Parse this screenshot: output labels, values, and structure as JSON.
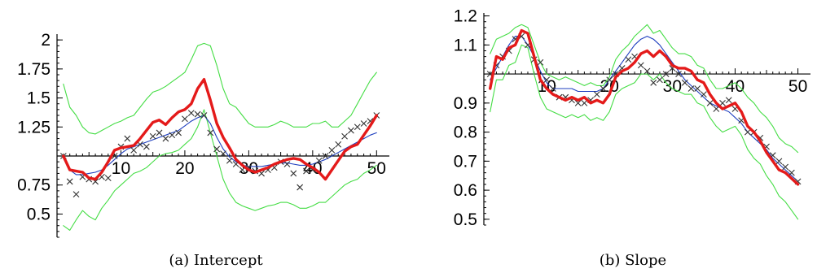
{
  "chart_data": [
    {
      "type": "line",
      "caption": "(a) Intercept",
      "x_axis": {
        "xlim": [
          0,
          52
        ],
        "ticks": [
          10,
          20,
          30,
          40,
          50
        ],
        "tick_labels": [
          "10",
          "20",
          "30",
          "40",
          "50"
        ],
        "crosses_y_at": 1
      },
      "y_axis": {
        "ylim": [
          0.3,
          2.05
        ],
        "ticks": [
          0.5,
          0.75,
          1.25,
          1.5,
          1.75,
          2
        ],
        "tick_labels": [
          "0.5",
          "0.75",
          "1.25",
          "1.5",
          "1.75",
          "2"
        ]
      },
      "grid": false,
      "legend": "none",
      "series": [
        {
          "style": "crosses",
          "color": "#333333",
          "x": [
            1,
            2,
            3,
            4,
            5,
            6,
            7,
            8,
            9,
            10,
            11,
            12,
            13,
            14,
            15,
            16,
            17,
            18,
            19,
            20,
            21,
            22,
            23,
            24,
            25,
            26,
            27,
            28,
            29,
            30,
            31,
            32,
            33,
            34,
            35,
            36,
            37,
            38,
            39,
            40,
            41,
            42,
            43,
            44,
            45,
            46,
            47,
            48,
            49,
            50
          ],
          "y": [
            1.0,
            0.78,
            0.67,
            0.82,
            0.8,
            0.78,
            0.82,
            0.81,
            1.0,
            1.08,
            1.15,
            1.05,
            1.1,
            1.08,
            1.17,
            1.2,
            1.15,
            1.18,
            1.2,
            1.32,
            1.37,
            1.36,
            1.35,
            1.2,
            1.06,
            1.02,
            0.96,
            0.93,
            0.88,
            0.9,
            0.87,
            0.85,
            0.88,
            0.9,
            0.95,
            0.93,
            0.85,
            0.73,
            0.87,
            0.88,
            0.96,
            1.0,
            1.05,
            1.1,
            1.17,
            1.22,
            1.25,
            1.28,
            1.3,
            1.35
          ]
        },
        {
          "style": "thin",
          "color": "#1f3fbf",
          "x": [
            1,
            2,
            3,
            4,
            5,
            6,
            7,
            8,
            9,
            10,
            11,
            12,
            13,
            14,
            15,
            16,
            17,
            18,
            19,
            20,
            21,
            22,
            23,
            24,
            25,
            26,
            27,
            28,
            29,
            30,
            31,
            32,
            33,
            34,
            35,
            36,
            37,
            38,
            39,
            40,
            41,
            42,
            43,
            44,
            45,
            46,
            47,
            48,
            49,
            50
          ],
          "y": [
            0.98,
            0.88,
            0.84,
            0.84,
            0.85,
            0.86,
            0.88,
            0.92,
            0.97,
            1.02,
            1.06,
            1.08,
            1.1,
            1.12,
            1.14,
            1.16,
            1.18,
            1.2,
            1.22,
            1.26,
            1.3,
            1.33,
            1.35,
            1.28,
            1.16,
            1.06,
            0.99,
            0.95,
            0.92,
            0.91,
            0.91,
            0.91,
            0.92,
            0.93,
            0.94,
            0.94,
            0.93,
            0.92,
            0.92,
            0.93,
            0.95,
            0.97,
            1.0,
            1.03,
            1.06,
            1.09,
            1.12,
            1.15,
            1.18,
            1.2
          ]
        },
        {
          "style": "thick",
          "color": "#e41a1a",
          "x": [
            1,
            2,
            3,
            4,
            5,
            6,
            7,
            8,
            9,
            10,
            11,
            12,
            13,
            14,
            15,
            16,
            17,
            18,
            19,
            20,
            21,
            22,
            23,
            24,
            25,
            26,
            27,
            28,
            29,
            30,
            31,
            32,
            33,
            34,
            35,
            36,
            37,
            38,
            39,
            40,
            41,
            42,
            43,
            44,
            45,
            46,
            47,
            48,
            49,
            50
          ],
          "y": [
            1.0,
            0.88,
            0.87,
            0.86,
            0.81,
            0.8,
            0.86,
            0.95,
            1.05,
            1.07,
            1.08,
            1.09,
            1.15,
            1.22,
            1.29,
            1.31,
            1.27,
            1.33,
            1.38,
            1.4,
            1.45,
            1.58,
            1.66,
            1.48,
            1.28,
            1.16,
            1.07,
            0.97,
            0.92,
            0.88,
            0.86,
            0.88,
            0.9,
            0.93,
            0.95,
            0.97,
            0.98,
            0.97,
            0.93,
            0.9,
            0.86,
            0.8,
            0.88,
            0.96,
            1.04,
            1.08,
            1.1,
            1.18,
            1.26,
            1.35
          ]
        },
        {
          "style": "band-upper",
          "color": "#44dd44",
          "x": [
            1,
            2,
            3,
            4,
            5,
            6,
            7,
            8,
            9,
            10,
            11,
            12,
            13,
            14,
            15,
            16,
            17,
            18,
            19,
            20,
            21,
            22,
            23,
            24,
            25,
            26,
            27,
            28,
            29,
            30,
            31,
            32,
            33,
            34,
            35,
            36,
            37,
            38,
            39,
            40,
            41,
            42,
            43,
            44,
            45,
            46,
            47,
            48,
            49,
            50
          ],
          "y": [
            1.62,
            1.42,
            1.35,
            1.25,
            1.2,
            1.19,
            1.22,
            1.25,
            1.28,
            1.3,
            1.33,
            1.35,
            1.42,
            1.49,
            1.55,
            1.57,
            1.6,
            1.64,
            1.68,
            1.72,
            1.83,
            1.95,
            1.97,
            1.95,
            1.78,
            1.58,
            1.45,
            1.42,
            1.35,
            1.28,
            1.25,
            1.25,
            1.25,
            1.27,
            1.3,
            1.28,
            1.25,
            1.25,
            1.25,
            1.28,
            1.28,
            1.3,
            1.25,
            1.25,
            1.3,
            1.35,
            1.45,
            1.55,
            1.65,
            1.72
          ]
        },
        {
          "style": "band-lower",
          "color": "#44dd44",
          "x": [
            1,
            2,
            3,
            4,
            5,
            6,
            7,
            8,
            9,
            10,
            11,
            12,
            13,
            14,
            15,
            16,
            17,
            18,
            19,
            20,
            21,
            22,
            23,
            24,
            25,
            26,
            27,
            28,
            29,
            30,
            31,
            32,
            33,
            34,
            35,
            36,
            37,
            38,
            39,
            40,
            41,
            42,
            43,
            44,
            45,
            46,
            47,
            48,
            49,
            50
          ],
          "y": [
            0.4,
            0.36,
            0.45,
            0.53,
            0.48,
            0.45,
            0.55,
            0.62,
            0.7,
            0.75,
            0.8,
            0.85,
            0.87,
            0.9,
            0.95,
            1.0,
            1.02,
            1.03,
            1.05,
            1.1,
            1.15,
            1.25,
            1.4,
            1.2,
            1.0,
            0.8,
            0.68,
            0.6,
            0.57,
            0.55,
            0.53,
            0.55,
            0.57,
            0.58,
            0.6,
            0.6,
            0.58,
            0.55,
            0.55,
            0.57,
            0.6,
            0.6,
            0.65,
            0.7,
            0.75,
            0.78,
            0.8,
            0.85,
            0.88,
            0.92
          ]
        }
      ]
    },
    {
      "type": "line",
      "caption": "(b) Slope",
      "x_axis": {
        "xlim": [
          0,
          52
        ],
        "ticks": [
          10,
          20,
          30,
          40,
          50
        ],
        "tick_labels": [
          "10",
          "20",
          "30",
          "40",
          "50"
        ],
        "crosses_y_at": 1
      },
      "y_axis": {
        "ylim": [
          0.48,
          1.21
        ],
        "ticks": [
          0.5,
          0.6,
          0.7,
          0.8,
          0.9,
          1.1,
          1.2
        ],
        "tick_labels": [
          "0.5",
          "0.6",
          "0.7",
          "0.8",
          "0.9",
          "1.1",
          "1.2"
        ]
      },
      "grid": false,
      "legend": "none",
      "series": [
        {
          "style": "crosses",
          "color": "#333333",
          "x": [
            1,
            2,
            3,
            4,
            5,
            6,
            7,
            8,
            9,
            10,
            11,
            12,
            13,
            14,
            15,
            16,
            17,
            18,
            19,
            20,
            21,
            22,
            23,
            24,
            25,
            26,
            27,
            28,
            29,
            30,
            31,
            32,
            33,
            34,
            35,
            36,
            37,
            38,
            39,
            40,
            41,
            42,
            43,
            44,
            45,
            46,
            47,
            48,
            49,
            50
          ],
          "y": [
            1.0,
            1.03,
            1.06,
            1.08,
            1.12,
            1.13,
            1.1,
            1.05,
            1.04,
            0.98,
            0.95,
            0.92,
            0.92,
            0.91,
            0.9,
            0.9,
            0.91,
            0.93,
            0.95,
            0.98,
            1.0,
            1.02,
            1.05,
            1.06,
            1.03,
            1.01,
            0.97,
            0.98,
            1.0,
            1.02,
            1.0,
            0.97,
            0.95,
            0.95,
            0.93,
            0.9,
            0.88,
            0.9,
            0.91,
            0.88,
            0.84,
            0.8,
            0.8,
            0.78,
            0.75,
            0.72,
            0.7,
            0.68,
            0.66,
            0.63
          ]
        },
        {
          "style": "thin",
          "color": "#1f3fbf",
          "x": [
            1,
            2,
            3,
            4,
            5,
            6,
            7,
            8,
            9,
            10,
            11,
            12,
            13,
            14,
            15,
            16,
            17,
            18,
            19,
            20,
            21,
            22,
            23,
            24,
            25,
            26,
            27,
            28,
            29,
            30,
            31,
            32,
            33,
            34,
            35,
            36,
            37,
            38,
            39,
            40,
            41,
            42,
            43,
            44,
            45,
            46,
            47,
            48,
            49,
            50
          ],
          "y": [
            0.98,
            1.02,
            1.06,
            1.1,
            1.13,
            1.13,
            1.1,
            1.06,
            1.01,
            0.97,
            0.95,
            0.95,
            0.95,
            0.95,
            0.94,
            0.94,
            0.94,
            0.94,
            0.95,
            0.98,
            1.01,
            1.04,
            1.07,
            1.1,
            1.12,
            1.13,
            1.12,
            1.1,
            1.07,
            1.04,
            1.01,
            0.98,
            0.96,
            0.94,
            0.92,
            0.9,
            0.89,
            0.88,
            0.87,
            0.85,
            0.83,
            0.8,
            0.78,
            0.76,
            0.74,
            0.71,
            0.69,
            0.67,
            0.65,
            0.63
          ]
        },
        {
          "style": "thick",
          "color": "#e41a1a",
          "x": [
            1,
            2,
            3,
            4,
            5,
            6,
            7,
            8,
            9,
            10,
            11,
            12,
            13,
            14,
            15,
            16,
            17,
            18,
            19,
            20,
            21,
            22,
            23,
            24,
            25,
            26,
            27,
            28,
            29,
            30,
            31,
            32,
            33,
            34,
            35,
            36,
            37,
            38,
            39,
            40,
            41,
            42,
            43,
            44,
            45,
            46,
            47,
            48,
            49,
            50
          ],
          "y": [
            0.95,
            1.06,
            1.05,
            1.09,
            1.1,
            1.15,
            1.14,
            1.06,
            0.98,
            0.95,
            0.93,
            0.92,
            0.91,
            0.92,
            0.91,
            0.92,
            0.9,
            0.91,
            0.9,
            0.93,
            0.99,
            1.01,
            1.02,
            1.04,
            1.07,
            1.08,
            1.06,
            1.08,
            1.06,
            1.03,
            1.02,
            1.02,
            1.01,
            0.98,
            0.97,
            0.93,
            0.9,
            0.88,
            0.89,
            0.9,
            0.87,
            0.82,
            0.8,
            0.77,
            0.73,
            0.7,
            0.67,
            0.66,
            0.64,
            0.62
          ]
        },
        {
          "style": "band-upper",
          "color": "#44dd44",
          "x": [
            1,
            2,
            3,
            4,
            5,
            6,
            7,
            8,
            9,
            10,
            11,
            12,
            13,
            14,
            15,
            16,
            17,
            18,
            19,
            20,
            21,
            22,
            23,
            24,
            25,
            26,
            27,
            28,
            29,
            30,
            31,
            32,
            33,
            34,
            35,
            36,
            37,
            38,
            39,
            40,
            41,
            42,
            43,
            44,
            45,
            46,
            47,
            48,
            49,
            50
          ],
          "y": [
            1.07,
            1.12,
            1.13,
            1.14,
            1.16,
            1.17,
            1.16,
            1.1,
            1.04,
            1.0,
            0.99,
            0.98,
            0.99,
            0.98,
            0.97,
            0.96,
            0.97,
            0.96,
            0.96,
            0.99,
            1.05,
            1.08,
            1.1,
            1.13,
            1.15,
            1.17,
            1.14,
            1.15,
            1.12,
            1.09,
            1.07,
            1.07,
            1.06,
            1.03,
            1.02,
            0.98,
            0.95,
            0.95,
            0.96,
            0.97,
            0.95,
            0.92,
            0.9,
            0.87,
            0.85,
            0.82,
            0.78,
            0.76,
            0.75,
            0.73
          ]
        },
        {
          "style": "band-lower",
          "color": "#44dd44",
          "x": [
            1,
            2,
            3,
            4,
            5,
            6,
            7,
            8,
            9,
            10,
            11,
            12,
            13,
            14,
            15,
            16,
            17,
            18,
            19,
            20,
            21,
            22,
            23,
            24,
            25,
            26,
            27,
            28,
            29,
            30,
            31,
            32,
            33,
            34,
            35,
            36,
            37,
            38,
            39,
            40,
            41,
            42,
            43,
            44,
            45,
            46,
            47,
            48,
            49,
            50
          ],
          "y": [
            0.87,
            0.98,
            0.98,
            1.03,
            1.04,
            1.1,
            1.09,
            1.0,
            0.92,
            0.88,
            0.87,
            0.86,
            0.85,
            0.86,
            0.85,
            0.86,
            0.84,
            0.85,
            0.84,
            0.87,
            0.93,
            0.95,
            0.96,
            0.97,
            1.0,
            1.0,
            0.98,
            1.0,
            0.97,
            0.95,
            0.94,
            0.93,
            0.93,
            0.9,
            0.89,
            0.85,
            0.82,
            0.8,
            0.81,
            0.82,
            0.79,
            0.74,
            0.71,
            0.69,
            0.65,
            0.62,
            0.58,
            0.56,
            0.53,
            0.5
          ]
        }
      ]
    }
  ]
}
